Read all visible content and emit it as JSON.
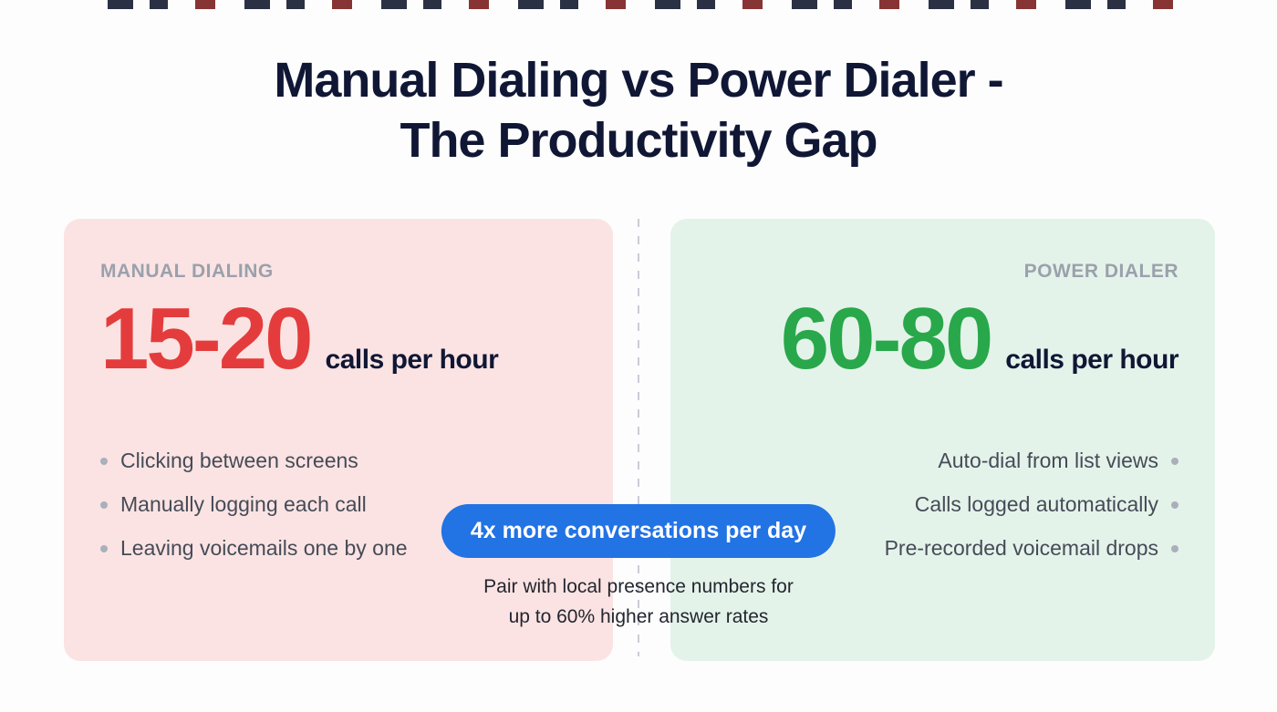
{
  "title": {
    "line1": "Manual Dialing vs Power Dialer -",
    "line2": "The Productivity Gap"
  },
  "left_card": {
    "label": "MANUAL DIALING",
    "value": "15-20",
    "unit": "calls per hour",
    "bullets": [
      "Clicking between screens",
      "Manually logging each call",
      "Leaving voicemails one by one"
    ]
  },
  "right_card": {
    "label": "POWER DIALER",
    "value": "60-80",
    "unit": "calls per hour",
    "bullets": [
      "Auto-dial from list views",
      "Calls logged automatically",
      "Pre-recorded voicemail drops"
    ]
  },
  "center": {
    "badge": "4x more conversations per day",
    "caption_line1": "Pair with local presence numbers for",
    "caption_line2": "up to 60% higher answer rates"
  },
  "colors": {
    "title": "#101735",
    "manual_value": "#e43c3c",
    "power_value": "#28a84a",
    "manual_card_bg": "#fbe3e3",
    "power_card_bg": "#e4f3ea",
    "badge_bg": "#2273e4",
    "label_gray": "#9aa1ac"
  }
}
